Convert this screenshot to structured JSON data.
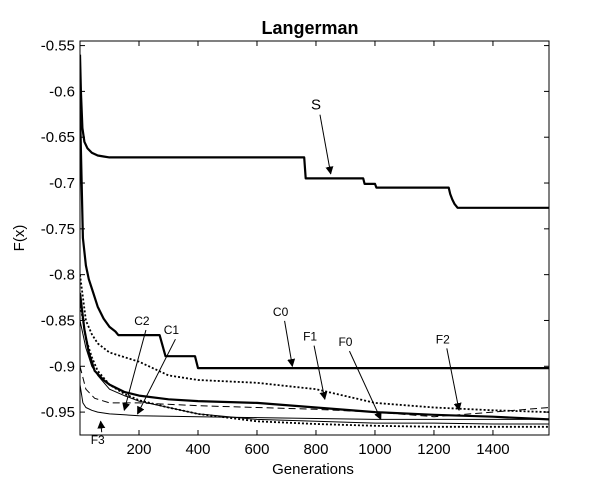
{
  "chart_data": {
    "type": "line",
    "title": "Langerman",
    "xlabel": "Generations",
    "ylabel": "F(x)",
    "xlim": [
      0,
      1590
    ],
    "ylim": [
      -0.975,
      -0.545
    ],
    "xticks": [
      200,
      400,
      600,
      800,
      1000,
      1200,
      1400
    ],
    "xtick_labels": [
      "200",
      "400",
      "600",
      "800",
      "1000",
      "1200",
      "1400"
    ],
    "yticks": [
      -0.55,
      -0.6,
      -0.65,
      -0.7,
      -0.75,
      -0.8,
      -0.85,
      -0.9,
      -0.95
    ],
    "ytick_labels": [
      "-0.55",
      "-0.6",
      "-0.65",
      "-0.7",
      "-0.75",
      "-0.8",
      "-0.85",
      "-0.9",
      "-0.95"
    ],
    "grid": false,
    "series": [
      {
        "name": "S",
        "style": "solid-thick",
        "x": [
          0,
          3,
          8,
          15,
          25,
          40,
          60,
          80,
          100,
          760,
          765,
          960,
          965,
          1000,
          1005,
          1250,
          1255,
          1262,
          1270,
          1280,
          1590
        ],
        "y": [
          -0.56,
          -0.6,
          -0.64,
          -0.655,
          -0.662,
          -0.667,
          -0.67,
          -0.671,
          -0.672,
          -0.672,
          -0.695,
          -0.695,
          -0.701,
          -0.701,
          -0.705,
          -0.705,
          -0.712,
          -0.718,
          -0.723,
          -0.727,
          -0.727
        ]
      },
      {
        "name": "C0",
        "style": "solid-thick",
        "x": [
          0,
          10,
          20,
          30,
          45,
          60,
          80,
          100,
          120,
          130,
          270,
          290,
          390,
          400,
          1590
        ],
        "y": [
          -0.62,
          -0.76,
          -0.79,
          -0.805,
          -0.82,
          -0.835,
          -0.848,
          -0.857,
          -0.862,
          -0.866,
          -0.866,
          -0.889,
          -0.889,
          -0.902,
          -0.902
        ]
      },
      {
        "name": "F0",
        "style": "solid-thick",
        "x": [
          0,
          15,
          30,
          50,
          80,
          100,
          150,
          200,
          300,
          400,
          600,
          800,
          1000,
          1200,
          1400,
          1590
        ],
        "y": [
          -0.82,
          -0.86,
          -0.885,
          -0.905,
          -0.915,
          -0.92,
          -0.928,
          -0.932,
          -0.936,
          -0.938,
          -0.94,
          -0.945,
          -0.95,
          -0.953,
          -0.955,
          -0.958
        ]
      },
      {
        "name": "F1",
        "style": "dotted",
        "x": [
          0,
          20,
          40,
          60,
          80,
          100,
          150,
          200,
          300,
          400,
          600,
          800,
          1000,
          1200,
          1400,
          1590
        ],
        "y": [
          -0.8,
          -0.85,
          -0.865,
          -0.875,
          -0.88,
          -0.885,
          -0.89,
          -0.895,
          -0.91,
          -0.915,
          -0.918,
          -0.925,
          -0.94,
          -0.945,
          -0.948,
          -0.95
        ]
      },
      {
        "name": "F2",
        "style": "dashed",
        "x": [
          0,
          20,
          50,
          100,
          200,
          400,
          600,
          800,
          1000,
          1200,
          1400,
          1590
        ],
        "y": [
          -0.9,
          -0.925,
          -0.935,
          -0.94,
          -0.94,
          -0.943,
          -0.945,
          -0.947,
          -0.95,
          -0.955,
          -0.95,
          -0.945
        ]
      },
      {
        "name": "C1",
        "style": "solid-thin",
        "x": [
          0,
          20,
          40,
          60,
          100,
          150,
          200,
          300,
          400,
          600,
          800,
          1000,
          1200,
          1400,
          1590
        ],
        "y": [
          -0.85,
          -0.88,
          -0.9,
          -0.91,
          -0.925,
          -0.932,
          -0.938,
          -0.945,
          -0.952,
          -0.958,
          -0.96,
          -0.962,
          -0.962,
          -0.963,
          -0.963
        ]
      },
      {
        "name": "C2",
        "style": "dotted",
        "x": [
          0,
          20,
          40,
          60,
          100,
          150,
          200,
          300,
          400,
          600,
          800,
          1000,
          1200,
          1400,
          1590
        ],
        "y": [
          -0.83,
          -0.87,
          -0.89,
          -0.905,
          -0.92,
          -0.93,
          -0.937,
          -0.945,
          -0.952,
          -0.96,
          -0.963,
          -0.965,
          -0.966,
          -0.966,
          -0.966
        ]
      },
      {
        "name": "F3",
        "style": "solid-thin",
        "x": [
          0,
          10,
          20,
          40,
          60,
          100,
          150,
          200,
          400,
          600,
          800,
          1000,
          1200,
          1400,
          1590
        ],
        "y": [
          -0.92,
          -0.94,
          -0.945,
          -0.948,
          -0.95,
          -0.952,
          -0.953,
          -0.954,
          -0.955,
          -0.956,
          -0.957,
          -0.958,
          -0.958,
          -0.958,
          -0.958
        ]
      }
    ],
    "annotations": [
      {
        "text": "S",
        "label_at": [
          800,
          -0.62
        ],
        "arrow_to": [
          850,
          -0.69
        ]
      },
      {
        "text": "C0",
        "label_at": [
          680,
          -0.845
        ],
        "arrow_to": [
          720,
          -0.9
        ]
      },
      {
        "text": "C2",
        "label_at": [
          210,
          -0.855
        ],
        "arrow_to": [
          150,
          -0.948
        ]
      },
      {
        "text": "C1",
        "label_at": [
          310,
          -0.865
        ],
        "arrow_to": [
          195,
          -0.952
        ]
      },
      {
        "text": "F1",
        "label_at": [
          780,
          -0.872
        ],
        "arrow_to": [
          830,
          -0.936
        ]
      },
      {
        "text": "F0",
        "label_at": [
          900,
          -0.878
        ],
        "arrow_to": [
          1020,
          -0.958
        ]
      },
      {
        "text": "F2",
        "label_at": [
          1230,
          -0.875
        ],
        "arrow_to": [
          1285,
          -0.948
        ]
      },
      {
        "text": "F3",
        "label_at": [
          60,
          -0.985
        ],
        "arrow_to": [
          70,
          -0.96
        ]
      }
    ]
  }
}
